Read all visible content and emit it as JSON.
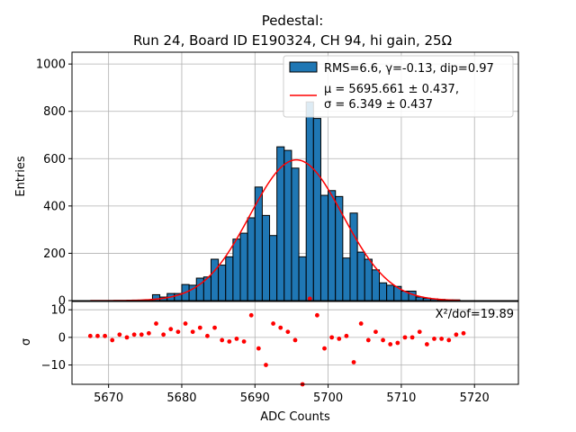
{
  "chart_data": [
    {
      "type": "bar",
      "title": "Pedestal:",
      "subtitle": "Run 24, Board ID E190324, CH 94, hi gain, 25Ω",
      "xlabel": "",
      "ylabel": "Entries",
      "ylim": [
        0,
        1050
      ],
      "yticks": [
        0,
        200,
        400,
        600,
        800,
        1000
      ],
      "xlim": [
        5665,
        5726
      ],
      "grid": true,
      "legend_position": "top-right",
      "legend": [
        "RMS=6.6, γ=-0.13, dip=0.97",
        "μ = 5695.661 ± 0.437,",
        "σ = 6.349 ± 0.437"
      ],
      "colors": {
        "bars": "#1f77b4",
        "fit": "#ff0000",
        "grid": "#b0b0b0"
      },
      "bin_width": 1,
      "bins": [
        {
          "x": 5676,
          "y": 25
        },
        {
          "x": 5677,
          "y": 15
        },
        {
          "x": 5678,
          "y": 30
        },
        {
          "x": 5679,
          "y": 30
        },
        {
          "x": 5680,
          "y": 68
        },
        {
          "x": 5681,
          "y": 65
        },
        {
          "x": 5682,
          "y": 95
        },
        {
          "x": 5683,
          "y": 100
        },
        {
          "x": 5684,
          "y": 175
        },
        {
          "x": 5685,
          "y": 150
        },
        {
          "x": 5686,
          "y": 185
        },
        {
          "x": 5687,
          "y": 260
        },
        {
          "x": 5688,
          "y": 285
        },
        {
          "x": 5689,
          "y": 350
        },
        {
          "x": 5690,
          "y": 480
        },
        {
          "x": 5691,
          "y": 360
        },
        {
          "x": 5692,
          "y": 275
        },
        {
          "x": 5693,
          "y": 650
        },
        {
          "x": 5694,
          "y": 635
        },
        {
          "x": 5695,
          "y": 560
        },
        {
          "x": 5696,
          "y": 185
        },
        {
          "x": 5697,
          "y": 840
        },
        {
          "x": 5698,
          "y": 770
        },
        {
          "x": 5699,
          "y": 445
        },
        {
          "x": 5700,
          "y": 465
        },
        {
          "x": 5701,
          "y": 440
        },
        {
          "x": 5702,
          "y": 180
        },
        {
          "x": 5703,
          "y": 370
        },
        {
          "x": 5704,
          "y": 205
        },
        {
          "x": 5705,
          "y": 175
        },
        {
          "x": 5706,
          "y": 130
        },
        {
          "x": 5707,
          "y": 75
        },
        {
          "x": 5708,
          "y": 65
        },
        {
          "x": 5709,
          "y": 60
        },
        {
          "x": 5710,
          "y": 40
        },
        {
          "x": 5711,
          "y": 40
        },
        {
          "x": 5712,
          "y": 15
        },
        {
          "x": 5713,
          "y": 10
        },
        {
          "x": 5714,
          "y": 7
        },
        {
          "x": 5715,
          "y": 5
        },
        {
          "x": 5716,
          "y": 3
        },
        {
          "x": 5717,
          "y": 3
        }
      ],
      "fit": {
        "mu": 5695.661,
        "sigma": 6.349,
        "amplitude": 595,
        "x_range": [
          5667.5,
          5718
        ]
      }
    },
    {
      "type": "scatter",
      "xlabel": "ADC Counts",
      "ylabel": "σ",
      "ylim": [
        -17,
        13
      ],
      "yticks": [
        -10,
        0,
        10
      ],
      "xlim": [
        5665,
        5726
      ],
      "xticks": [
        5670,
        5680,
        5690,
        5700,
        5710,
        5720
      ],
      "grid": true,
      "annotation": "X²/dof=19.89",
      "colors": {
        "points": "#ff0000"
      },
      "points": [
        {
          "x": 5667.5,
          "y": 0.5
        },
        {
          "x": 5668.5,
          "y": 0.5
        },
        {
          "x": 5669.5,
          "y": 0.5
        },
        {
          "x": 5670.5,
          "y": -1
        },
        {
          "x": 5671.5,
          "y": 1
        },
        {
          "x": 5672.5,
          "y": 0
        },
        {
          "x": 5673.5,
          "y": 1
        },
        {
          "x": 5674.5,
          "y": 1
        },
        {
          "x": 5675.5,
          "y": 1.5
        },
        {
          "x": 5676.5,
          "y": 5
        },
        {
          "x": 5677.5,
          "y": 1
        },
        {
          "x": 5678.5,
          "y": 3
        },
        {
          "x": 5679.5,
          "y": 2
        },
        {
          "x": 5680.5,
          "y": 5
        },
        {
          "x": 5681.5,
          "y": 2
        },
        {
          "x": 5682.5,
          "y": 3.5
        },
        {
          "x": 5683.5,
          "y": 0.5
        },
        {
          "x": 5684.5,
          "y": 3.5
        },
        {
          "x": 5685.5,
          "y": -1
        },
        {
          "x": 5686.5,
          "y": -1.5
        },
        {
          "x": 5687.5,
          "y": -0.5
        },
        {
          "x": 5688.5,
          "y": -1.5
        },
        {
          "x": 5689.5,
          "y": 8
        },
        {
          "x": 5690.5,
          "y": -4
        },
        {
          "x": 5691.5,
          "y": -10
        },
        {
          "x": 5692.5,
          "y": 5
        },
        {
          "x": 5693.5,
          "y": 3.5
        },
        {
          "x": 5694.5,
          "y": 2
        },
        {
          "x": 5695.5,
          "y": -1
        },
        {
          "x": 5696.5,
          "y": -17
        },
        {
          "x": 5697.5,
          "y": 14
        },
        {
          "x": 5698.5,
          "y": 8
        },
        {
          "x": 5699.5,
          "y": -4
        },
        {
          "x": 5700.5,
          "y": 0
        },
        {
          "x": 5701.5,
          "y": -0.5
        },
        {
          "x": 5702.5,
          "y": 0.5
        },
        {
          "x": 5703.5,
          "y": -9
        },
        {
          "x": 5704.5,
          "y": 5
        },
        {
          "x": 5705.5,
          "y": -1
        },
        {
          "x": 5706.5,
          "y": 2
        },
        {
          "x": 5707.5,
          "y": -1
        },
        {
          "x": 5708.5,
          "y": -2.5
        },
        {
          "x": 5709.5,
          "y": -2
        },
        {
          "x": 5710.5,
          "y": 0
        },
        {
          "x": 5711.5,
          "y": 0
        },
        {
          "x": 5712.5,
          "y": 2
        },
        {
          "x": 5713.5,
          "y": -2.5
        },
        {
          "x": 5714.5,
          "y": -0.5
        },
        {
          "x": 5715.5,
          "y": -0.5
        },
        {
          "x": 5716.5,
          "y": -1
        },
        {
          "x": 5717.5,
          "y": 1
        },
        {
          "x": 5718.5,
          "y": 1.5
        }
      ]
    }
  ]
}
